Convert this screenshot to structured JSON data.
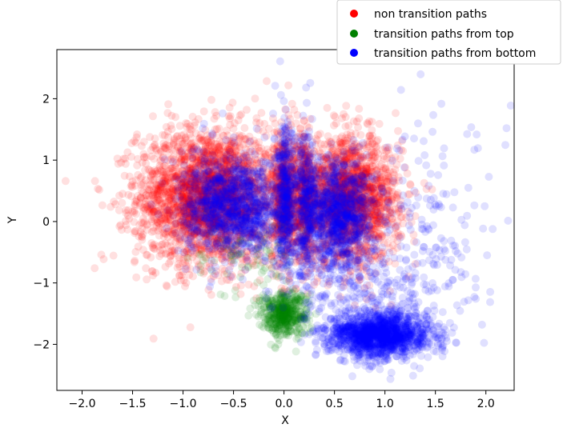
{
  "chart_data": {
    "type": "scatter",
    "title": "",
    "xlabel": "X",
    "ylabel": "Y",
    "xlim": [
      -2.25,
      2.28
    ],
    "ylim": [
      -2.75,
      2.8
    ],
    "xticks": [
      -2.0,
      -1.5,
      -1.0,
      -0.5,
      0.0,
      0.5,
      1.0,
      1.5,
      2.0
    ],
    "yticks": [
      -2,
      -1,
      0,
      1,
      2
    ],
    "xtick_labels": [
      "−2.0",
      "−1.5",
      "−1.0",
      "−0.5",
      "0.0",
      "0.5",
      "1.0",
      "1.5",
      "2.0"
    ],
    "ytick_labels": [
      "−2",
      "−1",
      "0",
      "1",
      "2"
    ],
    "legend_position": "top-right (outside axes)",
    "marker_alpha": 0.12,
    "series": [
      {
        "name": "non transition paths",
        "color": "#ff0000",
        "clusters": [
          {
            "center": [
              -0.75,
              0.4
            ],
            "spread": [
              0.35,
              0.55
            ],
            "count": 2600
          },
          {
            "center": [
              0.65,
              0.35
            ],
            "spread": [
              0.25,
              0.5
            ],
            "count": 1800
          },
          {
            "center": [
              0.0,
              0.4
            ],
            "spread": [
              0.06,
              0.55
            ],
            "count": 500
          },
          {
            "center": [
              0.2,
              0.4
            ],
            "spread": [
              0.05,
              0.55
            ],
            "count": 400
          }
        ]
      },
      {
        "name": "transition paths from top",
        "color": "#008000",
        "clusters": [
          {
            "center": [
              0.0,
              -1.5
            ],
            "spread": [
              0.12,
              0.18
            ],
            "count": 500
          },
          {
            "center": [
              -0.4,
              -0.6
            ],
            "spread": [
              0.25,
              0.3
            ],
            "count": 80
          }
        ]
      },
      {
        "name": "transition paths from bottom",
        "color": "#0000ff",
        "clusters": [
          {
            "center": [
              -0.5,
              0.25
            ],
            "spread": [
              0.25,
              0.4
            ],
            "count": 1200
          },
          {
            "center": [
              0.55,
              0.1
            ],
            "spread": [
              0.17,
              0.45
            ],
            "count": 1000
          },
          {
            "center": [
              0.02,
              0.3
            ],
            "spread": [
              0.05,
              0.6
            ],
            "count": 450
          },
          {
            "center": [
              0.22,
              0.3
            ],
            "spread": [
              0.05,
              0.6
            ],
            "count": 350
          },
          {
            "center": [
              0.95,
              -1.85
            ],
            "spread": [
              0.25,
              0.18
            ],
            "count": 1500
          },
          {
            "center": [
              1.4,
              0.0
            ],
            "spread": [
              0.35,
              0.8
            ],
            "count": 160
          },
          {
            "center": [
              0.9,
              -1.2
            ],
            "spread": [
              0.45,
              0.35
            ],
            "count": 250
          }
        ]
      }
    ]
  }
}
